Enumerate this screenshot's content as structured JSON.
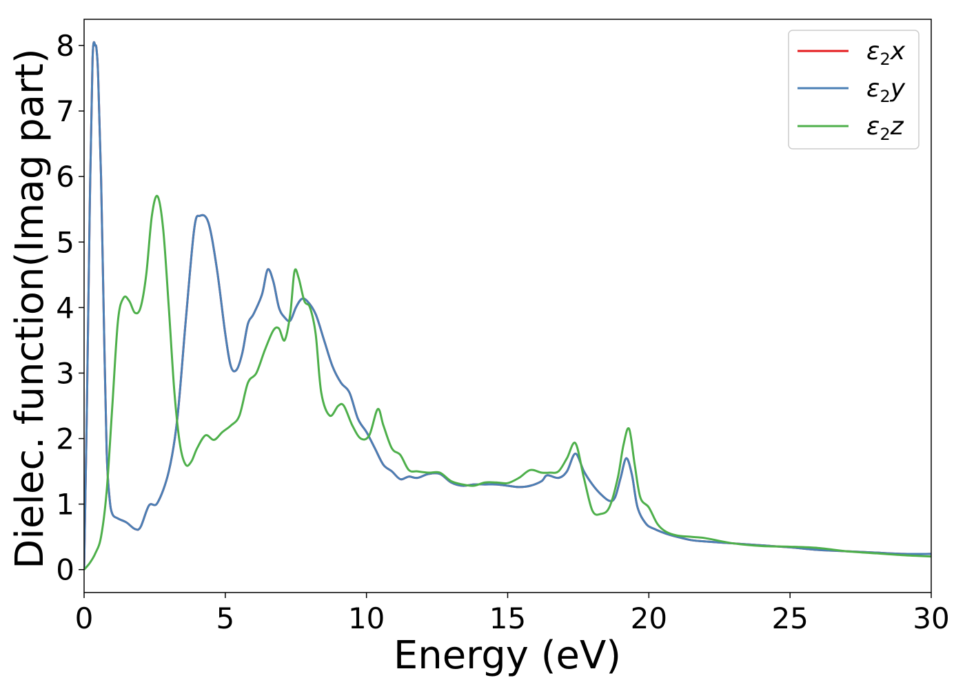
{
  "chart_data": {
    "type": "line",
    "title": "",
    "xlabel": "Energy (eV)",
    "ylabel": "Dielec. function(Imag part)",
    "xlim": [
      0,
      30
    ],
    "ylim": [
      -0.35,
      8.4
    ],
    "xticks": [
      0,
      5,
      10,
      15,
      20,
      25,
      30
    ],
    "yticks": [
      0,
      1,
      2,
      3,
      4,
      5,
      6,
      7,
      8
    ],
    "grid": false,
    "legend_position": "top-right",
    "series": [
      {
        "name": "ε₂x",
        "legend_base": "ε",
        "legend_sub": "2",
        "legend_var": "x",
        "color": "#e41a1c",
        "x": [
          0,
          0.1,
          0.2,
          0.3,
          0.4,
          0.45,
          0.5,
          0.6,
          0.7,
          0.8,
          0.9,
          1.0,
          1.2,
          1.5,
          1.8,
          2.0,
          2.3,
          2.6,
          3.0,
          3.3,
          3.6,
          3.9,
          4.1,
          4.4,
          4.7,
          5.0,
          5.2,
          5.4,
          5.6,
          5.8,
          6.0,
          6.3,
          6.5,
          6.7,
          6.9,
          7.1,
          7.3,
          7.5,
          7.7,
          7.9,
          8.2,
          8.5,
          8.8,
          9.1,
          9.4,
          9.7,
          10.0,
          10.3,
          10.6,
          10.9,
          11.2,
          11.5,
          11.8,
          12.2,
          12.6,
          13.0,
          13.4,
          13.8,
          14.2,
          14.6,
          15.0,
          15.4,
          15.8,
          16.2,
          16.4,
          16.8,
          17.1,
          17.4,
          17.7,
          18.0,
          18.3,
          18.6,
          18.8,
          19.0,
          19.2,
          19.4,
          19.6,
          19.9,
          20.2,
          20.6,
          21.0,
          21.5,
          22.0,
          23.0,
          24.0,
          25.0,
          26.0,
          27.0,
          28.0,
          29.0,
          30.0
        ],
        "values": [
          0.0,
          2.5,
          5.5,
          7.8,
          8.0,
          7.9,
          7.5,
          6.0,
          3.8,
          1.8,
          1.1,
          0.85,
          0.78,
          0.72,
          0.62,
          0.65,
          0.98,
          1.02,
          1.5,
          2.3,
          3.8,
          5.2,
          5.4,
          5.3,
          4.6,
          3.6,
          3.1,
          3.05,
          3.3,
          3.75,
          3.9,
          4.2,
          4.58,
          4.4,
          4.0,
          3.85,
          3.8,
          4.0,
          4.13,
          4.1,
          3.9,
          3.5,
          3.1,
          2.85,
          2.7,
          2.3,
          2.1,
          1.85,
          1.6,
          1.5,
          1.38,
          1.42,
          1.4,
          1.46,
          1.46,
          1.33,
          1.28,
          1.3,
          1.3,
          1.3,
          1.28,
          1.26,
          1.28,
          1.35,
          1.44,
          1.4,
          1.5,
          1.77,
          1.5,
          1.3,
          1.15,
          1.05,
          1.1,
          1.4,
          1.7,
          1.45,
          0.95,
          0.7,
          0.62,
          0.55,
          0.5,
          0.45,
          0.43,
          0.4,
          0.37,
          0.34,
          0.3,
          0.28,
          0.26,
          0.24,
          0.24
        ]
      },
      {
        "name": "ε₂y",
        "legend_base": "ε",
        "legend_sub": "2",
        "legend_var": "y",
        "color": "#4a7fb5",
        "x": [
          0,
          0.1,
          0.2,
          0.3,
          0.4,
          0.45,
          0.5,
          0.6,
          0.7,
          0.8,
          0.9,
          1.0,
          1.2,
          1.5,
          1.8,
          2.0,
          2.3,
          2.6,
          3.0,
          3.3,
          3.6,
          3.9,
          4.1,
          4.4,
          4.7,
          5.0,
          5.2,
          5.4,
          5.6,
          5.8,
          6.0,
          6.3,
          6.5,
          6.7,
          6.9,
          7.1,
          7.3,
          7.5,
          7.7,
          7.9,
          8.2,
          8.5,
          8.8,
          9.1,
          9.4,
          9.7,
          10.0,
          10.3,
          10.6,
          10.9,
          11.2,
          11.5,
          11.8,
          12.2,
          12.6,
          13.0,
          13.4,
          13.8,
          14.2,
          14.6,
          15.0,
          15.4,
          15.8,
          16.2,
          16.4,
          16.8,
          17.1,
          17.4,
          17.7,
          18.0,
          18.3,
          18.6,
          18.8,
          19.0,
          19.2,
          19.4,
          19.6,
          19.9,
          20.2,
          20.6,
          21.0,
          21.5,
          22.0,
          23.0,
          24.0,
          25.0,
          26.0,
          27.0,
          28.0,
          29.0,
          30.0
        ],
        "values": [
          0.0,
          2.5,
          5.5,
          7.8,
          8.0,
          7.9,
          7.5,
          6.0,
          3.8,
          1.8,
          1.1,
          0.85,
          0.78,
          0.72,
          0.62,
          0.65,
          0.98,
          1.02,
          1.5,
          2.3,
          3.8,
          5.2,
          5.4,
          5.3,
          4.6,
          3.6,
          3.1,
          3.05,
          3.3,
          3.75,
          3.9,
          4.2,
          4.58,
          4.4,
          4.0,
          3.85,
          3.8,
          4.0,
          4.13,
          4.1,
          3.9,
          3.5,
          3.1,
          2.85,
          2.7,
          2.3,
          2.1,
          1.85,
          1.6,
          1.5,
          1.38,
          1.42,
          1.4,
          1.46,
          1.46,
          1.33,
          1.28,
          1.3,
          1.3,
          1.3,
          1.28,
          1.26,
          1.28,
          1.35,
          1.44,
          1.4,
          1.5,
          1.77,
          1.5,
          1.3,
          1.15,
          1.05,
          1.1,
          1.4,
          1.7,
          1.45,
          0.95,
          0.7,
          0.62,
          0.55,
          0.5,
          0.45,
          0.43,
          0.4,
          0.37,
          0.34,
          0.3,
          0.28,
          0.26,
          0.24,
          0.24
        ]
      },
      {
        "name": "ε₂z",
        "legend_base": "ε",
        "legend_sub": "2",
        "legend_var": "z",
        "color": "#4daf4a",
        "x": [
          0,
          0.2,
          0.4,
          0.6,
          0.8,
          1.0,
          1.2,
          1.4,
          1.6,
          1.8,
          2.0,
          2.2,
          2.4,
          2.6,
          2.8,
          3.0,
          3.2,
          3.4,
          3.6,
          3.8,
          4.0,
          4.3,
          4.6,
          4.9,
          5.2,
          5.5,
          5.8,
          6.1,
          6.4,
          6.7,
          6.9,
          7.1,
          7.3,
          7.45,
          7.6,
          7.8,
          8.0,
          8.2,
          8.4,
          8.7,
          9.0,
          9.2,
          9.5,
          9.8,
          10.1,
          10.4,
          10.6,
          10.9,
          11.2,
          11.5,
          11.8,
          12.2,
          12.6,
          13.0,
          13.4,
          13.8,
          14.2,
          14.6,
          15.0,
          15.4,
          15.8,
          16.2,
          16.5,
          16.8,
          17.1,
          17.4,
          17.7,
          18.0,
          18.3,
          18.6,
          18.9,
          19.1,
          19.3,
          19.5,
          19.7,
          20.0,
          20.3,
          20.6,
          21.0,
          21.5,
          22.0,
          23.0,
          24.0,
          25.0,
          26.0,
          27.0,
          28.0,
          29.0,
          30.0
        ],
        "values": [
          0.0,
          0.1,
          0.25,
          0.5,
          1.2,
          2.5,
          3.8,
          4.15,
          4.1,
          3.92,
          4.0,
          4.5,
          5.4,
          5.7,
          5.2,
          4.0,
          2.7,
          1.9,
          1.6,
          1.65,
          1.85,
          2.05,
          1.98,
          2.1,
          2.2,
          2.35,
          2.85,
          3.0,
          3.35,
          3.65,
          3.68,
          3.5,
          3.9,
          4.55,
          4.45,
          4.1,
          4.0,
          3.6,
          2.7,
          2.35,
          2.5,
          2.5,
          2.2,
          2.0,
          2.05,
          2.45,
          2.2,
          1.85,
          1.75,
          1.52,
          1.5,
          1.48,
          1.48,
          1.35,
          1.3,
          1.28,
          1.33,
          1.33,
          1.32,
          1.4,
          1.52,
          1.48,
          1.48,
          1.5,
          1.7,
          1.93,
          1.4,
          0.9,
          0.85,
          0.95,
          1.4,
          1.9,
          2.15,
          1.6,
          1.1,
          0.95,
          0.7,
          0.58,
          0.52,
          0.5,
          0.48,
          0.4,
          0.36,
          0.35,
          0.33,
          0.28,
          0.25,
          0.22,
          0.2
        ]
      }
    ]
  }
}
